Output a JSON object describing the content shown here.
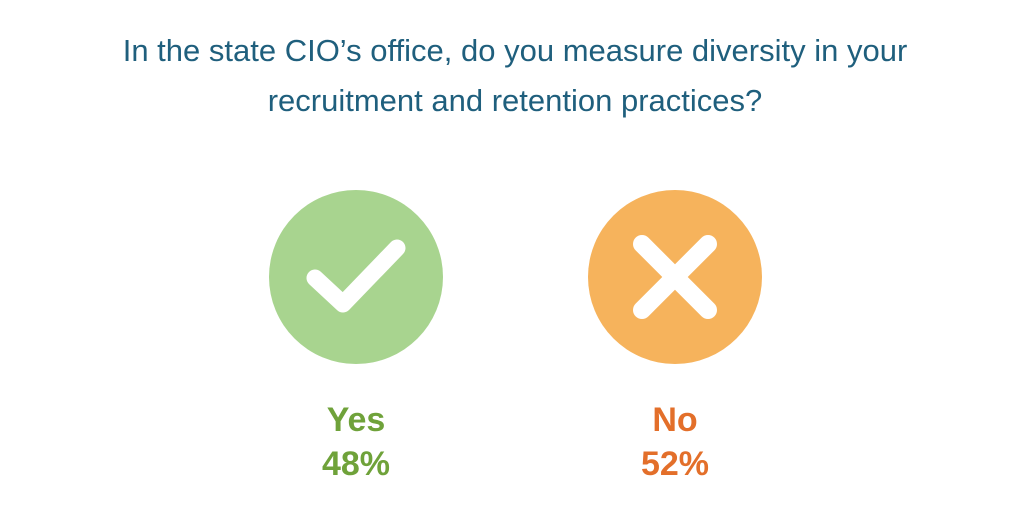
{
  "title": {
    "line1": "In the state CIO’s office, do you measure diversity in your",
    "line2": "recruitment and retention practices?"
  },
  "chart_data": {
    "type": "table",
    "title": "In the state CIO’s office, do you measure diversity in your recruitment and retention practices?",
    "categories": [
      "Yes",
      "No"
    ],
    "values": [
      48,
      52
    ],
    "value_labels": [
      "48%",
      "52%"
    ]
  },
  "options": [
    {
      "label": "Yes",
      "percent": "48%",
      "icon": "check-icon",
      "circle_color": "#a8d48f",
      "text_color": "#6fa23a"
    },
    {
      "label": "No",
      "percent": "52%",
      "icon": "x-icon",
      "circle_color": "#f6b35c",
      "text_color": "#e36f2a"
    }
  ],
  "colors": {
    "title": "#1f5f7d",
    "background": "#ffffff"
  }
}
